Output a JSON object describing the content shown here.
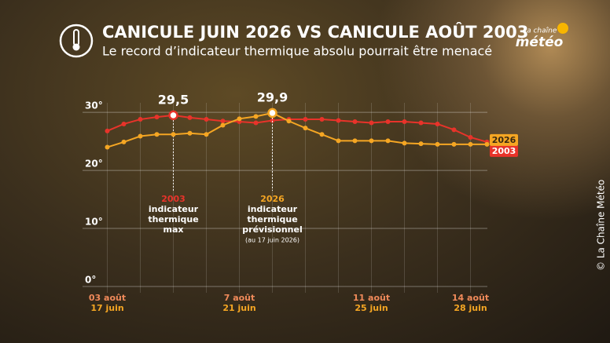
{
  "header": {
    "title": "CANICULE JUIN 2026 VS CANICULE AOÛT 2003",
    "subtitle": "Le record d’indicateur thermique absolu pourrait être menacé",
    "logo_top": "la chaîne",
    "logo_bottom": "météo"
  },
  "copyright": "© La Chaîne Météo",
  "chart_data": {
    "type": "line",
    "x": [
      0,
      0.5,
      1,
      1.5,
      2,
      2.5,
      3,
      3.5,
      4,
      4.5,
      5,
      5.5,
      6,
      6.5,
      7,
      7.5,
      8,
      8.5,
      9,
      9.5,
      10,
      10.5,
      11,
      11.5
    ],
    "series": [
      {
        "name": "2003",
        "color": "#e8332a",
        "values": [
          26.8,
          28.0,
          28.8,
          29.2,
          29.5,
          29.1,
          28.8,
          28.5,
          28.4,
          28.2,
          28.6,
          28.8,
          28.8,
          28.8,
          28.6,
          28.4,
          28.2,
          28.4,
          28.4,
          28.2,
          28.0,
          27.0,
          25.7,
          24.9
        ],
        "value_labels": [
          null,
          null,
          null,
          null,
          "29,5",
          null,
          null,
          null,
          null,
          null,
          null,
          null,
          null,
          null,
          null,
          null,
          null,
          null,
          null,
          null,
          null,
          null,
          null,
          null
        ]
      },
      {
        "name": "2026",
        "color": "#f5a623",
        "values": [
          24.0,
          24.9,
          25.9,
          26.2,
          26.2,
          26.4,
          26.2,
          27.8,
          28.9,
          29.3,
          29.9,
          28.5,
          27.3,
          26.2,
          25.1,
          25.1,
          25.1,
          25.1,
          24.7,
          24.6,
          24.5,
          24.5,
          24.5,
          24.5
        ],
        "value_labels": [
          null,
          null,
          null,
          null,
          null,
          null,
          null,
          null,
          null,
          null,
          "29,9",
          null,
          null,
          null,
          null,
          null,
          null,
          null,
          null,
          null,
          null,
          null,
          null,
          null
        ]
      }
    ],
    "annotations": [
      {
        "lines": [
          "2003",
          "indicateur",
          "thermique",
          "max"
        ]
      },
      {
        "lines": [
          "2026",
          "indicateur",
          "thermique",
          "prévisionnel"
        ],
        "note": "(au 17 juin 2026)"
      }
    ],
    "xlim": [
      -0.75,
      11.75
    ],
    "xgrid": [
      0,
      1,
      2,
      3,
      4,
      5,
      6,
      7,
      8,
      9,
      10,
      11
    ],
    "xticks": [
      {
        "value": 0,
        "label": "03 août"
      },
      {
        "value": 4,
        "label": "7 août"
      },
      {
        "value": 8,
        "label": "11 août"
      },
      {
        "value": 11,
        "label": "14 août"
      }
    ],
    "x2ticks": [
      {
        "value": 0,
        "label": "17 juin"
      },
      {
        "value": 4,
        "label": "21 juin"
      },
      {
        "value": 8,
        "label": "25 juin"
      },
      {
        "value": 11,
        "label": "28 juin"
      }
    ],
    "ylim": [
      0,
      33
    ],
    "yticks": [
      {
        "value": 0,
        "label": "0°"
      },
      {
        "value": 10,
        "label": "10°"
      },
      {
        "value": 20,
        "label": "20°"
      },
      {
        "value": 30,
        "label": "30°"
      }
    ],
    "grid": true
  }
}
